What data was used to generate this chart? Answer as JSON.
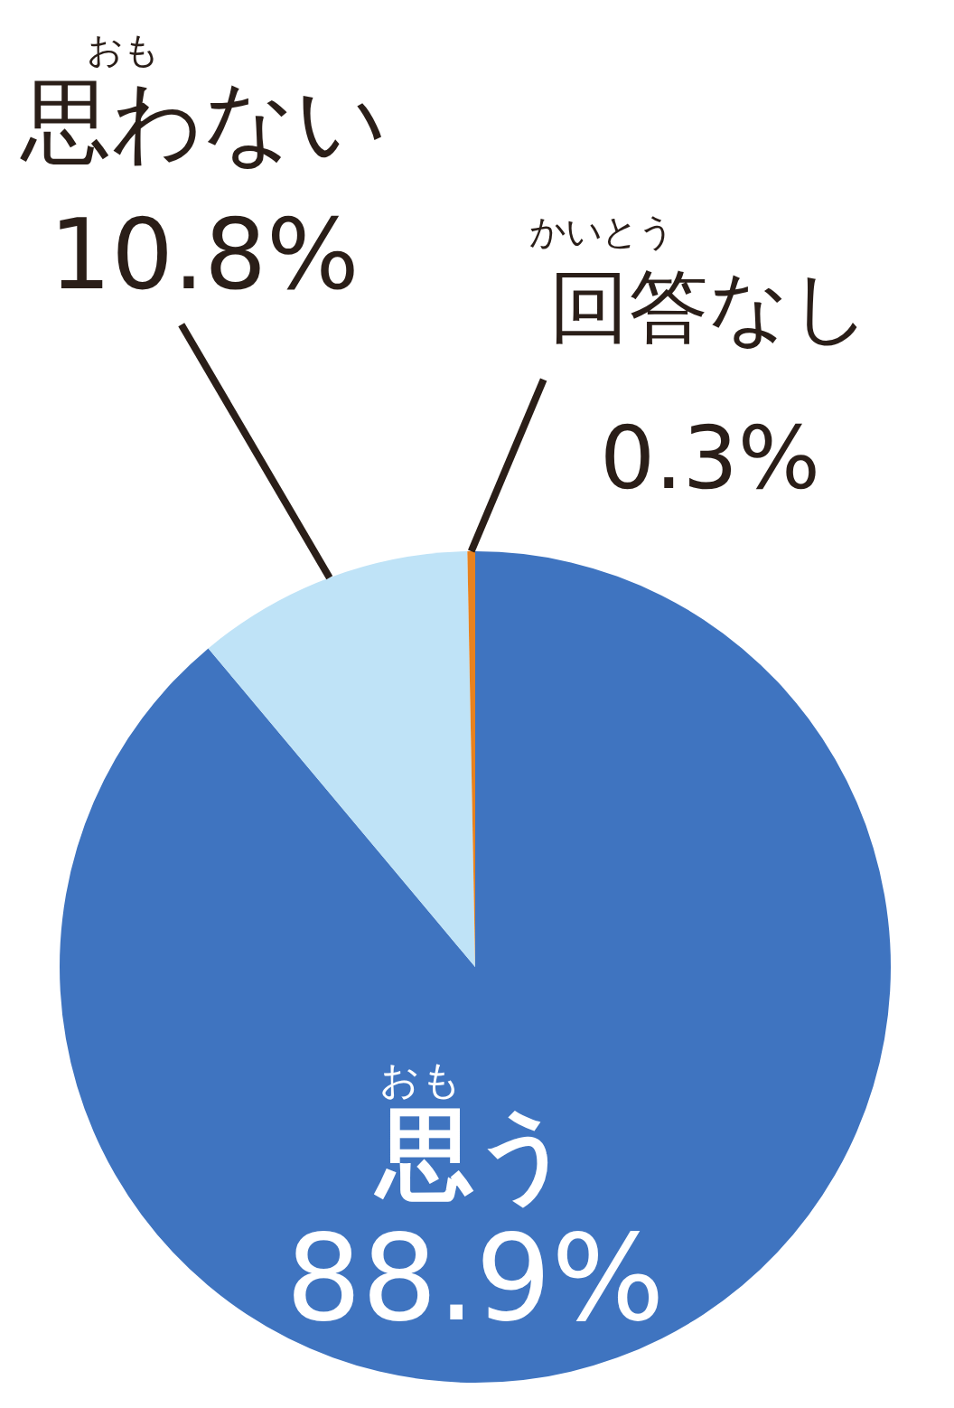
{
  "chart_data": {
    "type": "pie",
    "categories": [
      "思う",
      "思わない",
      "回答なし"
    ],
    "values": [
      88.9,
      10.8,
      0.3
    ],
    "value_labels": [
      "88.9%",
      "10.8%",
      "0.3%"
    ],
    "colors": [
      "#3f74c0",
      "#bfe3f7",
      "#e8821e"
    ],
    "annotations": [
      "おも",
      "おも",
      "かいとう"
    ],
    "legend": false
  }
}
